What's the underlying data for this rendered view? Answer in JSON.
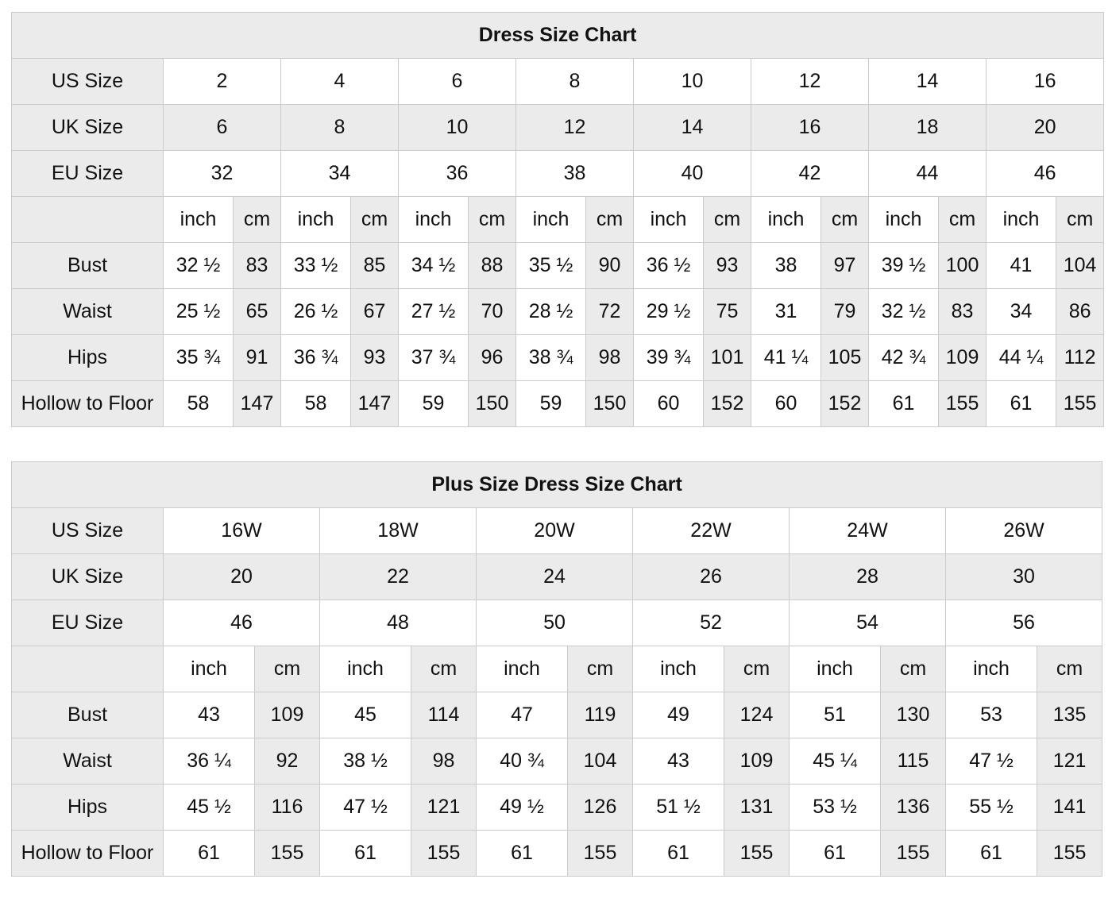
{
  "page": {
    "background": "#ffffff"
  },
  "colors": {
    "shaded_cell_bg": "#ebebeb",
    "white_cell_bg": "#ffffff",
    "inner_border": "#cbcbcb",
    "outer_border": "#9e9e9e",
    "text": "#111111"
  },
  "chart_data": [
    {
      "type": "table",
      "title": "Dress Size Chart",
      "unit_labels": [
        "inch",
        "cm"
      ],
      "size_rows": [
        {
          "label": "US Size",
          "values": [
            "2",
            "4",
            "6",
            "8",
            "10",
            "12",
            "14",
            "16"
          ]
        },
        {
          "label": "UK Size",
          "values": [
            "6",
            "8",
            "10",
            "12",
            "14",
            "16",
            "18",
            "20"
          ]
        },
        {
          "label": "EU Size",
          "values": [
            "32",
            "34",
            "36",
            "38",
            "40",
            "42",
            "44",
            "46"
          ]
        }
      ],
      "measure_rows": [
        {
          "label": "Bust",
          "inch": [
            "32 ½",
            "33 ½",
            "34 ½",
            "35 ½",
            "36 ½",
            "38",
            "39 ½",
            "41"
          ],
          "cm": [
            "83",
            "85",
            "88",
            "90",
            "93",
            "97",
            "100",
            "104"
          ]
        },
        {
          "label": "Waist",
          "inch": [
            "25 ½",
            "26 ½",
            "27 ½",
            "28 ½",
            "29 ½",
            "31",
            "32 ½",
            "34"
          ],
          "cm": [
            "65",
            "67",
            "70",
            "72",
            "75",
            "79",
            "83",
            "86"
          ]
        },
        {
          "label": "Hips",
          "inch": [
            "35 ¾",
            "36 ¾",
            "37 ¾",
            "38 ¾",
            "39 ¾",
            "41 ¼",
            "42 ¾",
            "44 ¼"
          ],
          "cm": [
            "91",
            "93",
            "96",
            "98",
            "101",
            "105",
            "109",
            "112"
          ]
        },
        {
          "label": "Hollow to Floor",
          "inch": [
            "58",
            "58",
            "59",
            "59",
            "60",
            "60",
            "61",
            "61"
          ],
          "cm": [
            "147",
            "147",
            "150",
            "150",
            "152",
            "152",
            "155",
            "155"
          ]
        }
      ]
    },
    {
      "type": "table",
      "title": "Plus Size Dress Size Chart",
      "unit_labels": [
        "inch",
        "cm"
      ],
      "size_rows": [
        {
          "label": "US Size",
          "values": [
            "16W",
            "18W",
            "20W",
            "22W",
            "24W",
            "26W"
          ]
        },
        {
          "label": "UK Size",
          "values": [
            "20",
            "22",
            "24",
            "26",
            "28",
            "30"
          ]
        },
        {
          "label": "EU Size",
          "values": [
            "46",
            "48",
            "50",
            "52",
            "54",
            "56"
          ]
        }
      ],
      "measure_rows": [
        {
          "label": "Bust",
          "inch": [
            "43",
            "45",
            "47",
            "49",
            "51",
            "53"
          ],
          "cm": [
            "109",
            "114",
            "119",
            "124",
            "130",
            "135"
          ]
        },
        {
          "label": "Waist",
          "inch": [
            "36 ¼",
            "38 ½",
            "40 ¾",
            "43",
            "45 ¼",
            "47 ½"
          ],
          "cm": [
            "92",
            "98",
            "104",
            "109",
            "115",
            "121"
          ]
        },
        {
          "label": "Hips",
          "inch": [
            "45 ½",
            "47 ½",
            "49 ½",
            "51 ½",
            "53 ½",
            "55 ½"
          ],
          "cm": [
            "116",
            "121",
            "126",
            "131",
            "136",
            "141"
          ]
        },
        {
          "label": "Hollow to Floor",
          "inch": [
            "61",
            "61",
            "61",
            "61",
            "61",
            "61"
          ],
          "cm": [
            "155",
            "155",
            "155",
            "155",
            "155",
            "155"
          ]
        }
      ]
    }
  ]
}
